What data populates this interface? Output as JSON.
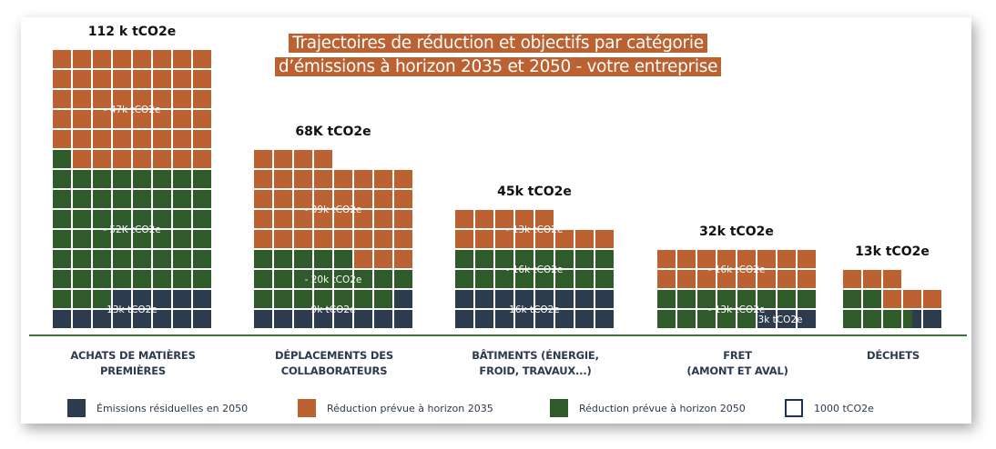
{
  "colors": {
    "residual": "#2d3b4e",
    "reduction_2035": "#bb6132",
    "reduction_2050": "#2f5a2a",
    "unit_border": "#1f3358",
    "baseline": "#3f6e3a"
  },
  "chart_data": {
    "type": "waffle",
    "title": "Trajectoires de réduction et objectifs par catégorie d’émissions à horizon 2035 et 2050 - votre entreprise",
    "title_lines": [
      "Trajectoires de réduction et objectifs par catégorie",
      "d’émissions à horizon 2035 et 2050 - votre entreprise"
    ],
    "unit": "1000 tCO2e per cell",
    "series_order": [
      "residual",
      "reduction_2050",
      "reduction_2035"
    ],
    "categories": [
      {
        "label_lines": [
          "ACHATS DE MATIÈRES",
          "PREMIÈRES"
        ],
        "total_label": "112 k tCO2e",
        "total": 112,
        "columns": 8,
        "residual": 13,
        "reduction_2050": 52,
        "reduction_2035": 47,
        "labels": {
          "residual": "13k tCO2e",
          "reduction_2050": "- 52K tCO2e",
          "reduction_2035": "- 47k tCO2e"
        }
      },
      {
        "label_lines": [
          "DÉPLACEMENTS DES",
          "COLLABORATEURS"
        ],
        "total_label": "68K tCO2e",
        "total": 68,
        "columns": 8,
        "residual": 9,
        "reduction_2050": 20,
        "reduction_2035": 39,
        "labels": {
          "residual": "9k tCO2e",
          "reduction_2050": "- 20k tCO2e",
          "reduction_2035": "- 39k tCO2e"
        }
      },
      {
        "label_lines": [
          "BÂTIMENTS (ÉNERGIE,",
          "FROID, TRAVAUX...)"
        ],
        "total_label": "45k tCO2e",
        "total": 45,
        "columns": 8,
        "residual": 16,
        "reduction_2050": 16,
        "reduction_2035": 13,
        "labels": {
          "residual": "16k tCO2e",
          "reduction_2050": "- 16k tCO2e",
          "reduction_2035": "- 13k tCO2e"
        }
      },
      {
        "label_lines": [
          "FRET",
          "(AMONT ET AVAL)"
        ],
        "total_label": "32k tCO2e",
        "total": 32,
        "columns": 8,
        "residual": 3,
        "reduction_2050": 13,
        "reduction_2035": 16,
        "labels": {
          "residual": "3k tCO2e",
          "reduction_2050": "- 13k tCO2e",
          "reduction_2035": "- 16k tCO2e"
        }
      },
      {
        "label_lines": [
          "DÉCHETS"
        ],
        "total_label": "13k tCO2e",
        "total": 13,
        "columns": 5,
        "residual": 1.5,
        "reduction_2050": 5.5,
        "reduction_2035": 6,
        "labels": {}
      }
    ],
    "legend": [
      {
        "key": "residual",
        "label": "Émissions résiduelles en 2050"
      },
      {
        "key": "reduction_2035",
        "label": "Réduction prévue à horizon 2035"
      },
      {
        "key": "reduction_2050",
        "label": "Réduction prévue à horizon 2050"
      },
      {
        "key": "unit",
        "label": "1000 tCO2e"
      }
    ]
  }
}
